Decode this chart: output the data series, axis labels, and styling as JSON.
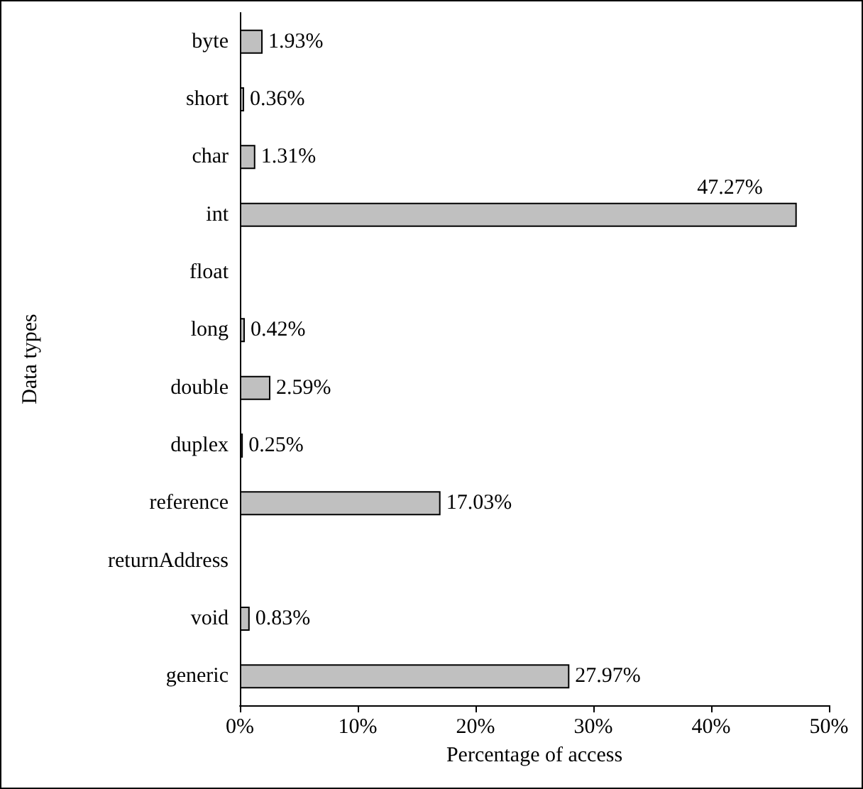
{
  "chart_data": {
    "type": "bar",
    "orientation": "horizontal",
    "xlabel": "Percentage of access",
    "ylabel": "Data types",
    "categories": [
      "byte",
      "short",
      "char",
      "int",
      "float",
      "long",
      "double",
      "duplex",
      "reference",
      "returnAddress",
      "void",
      "generic"
    ],
    "values": [
      1.93,
      0.36,
      1.31,
      47.27,
      null,
      0.42,
      2.59,
      0.25,
      17.03,
      null,
      0.83,
      27.97
    ],
    "value_labels": [
      "1.93%",
      "0.36%",
      "1.31%",
      "47.27%",
      null,
      "0.42%",
      "2.59%",
      "0.25%",
      "17.03%",
      null,
      "0.83%",
      "27.97%"
    ],
    "color": "#c0c0c0",
    "xlim": [
      0,
      50
    ],
    "xticks": [
      {
        "value": 0,
        "label": "0%"
      },
      {
        "value": 10,
        "label": "10%"
      },
      {
        "value": 20,
        "label": "20%"
      },
      {
        "value": 30,
        "label": "30%"
      },
      {
        "value": 40,
        "label": "40%"
      },
      {
        "value": 50,
        "label": "50%"
      }
    ],
    "grid": false
  }
}
